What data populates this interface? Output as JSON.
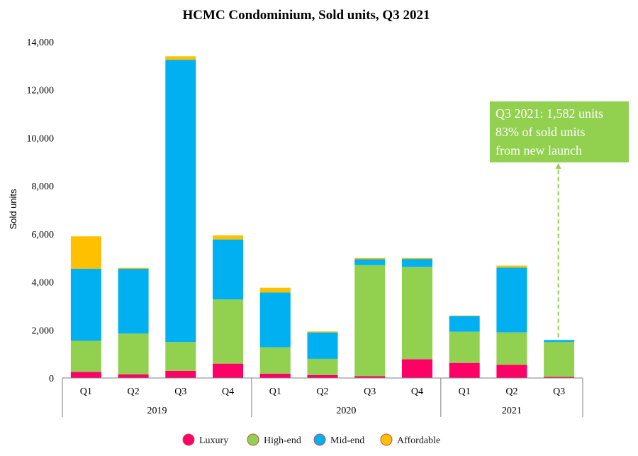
{
  "chart_data": {
    "type": "bar",
    "stacked": true,
    "title": "HCMC Condominium, Sold units, Q3 2021",
    "ylabel": "Sold units",
    "ylim": [
      0,
      14000
    ],
    "yticks": [
      0,
      2000,
      4000,
      6000,
      8000,
      10000,
      12000,
      14000
    ],
    "ytick_labels": [
      "0",
      "2,000",
      "4,000",
      "6,000",
      "8,000",
      "10,000",
      "12,000",
      "14,000"
    ],
    "categories": [
      "Q1",
      "Q2",
      "Q3",
      "Q4",
      "Q1",
      "Q2",
      "Q3",
      "Q4",
      "Q1",
      "Q2",
      "Q3"
    ],
    "groups": [
      {
        "label": "2019",
        "count": 4
      },
      {
        "label": "2020",
        "count": 4
      },
      {
        "label": "2021",
        "count": 3
      }
    ],
    "series": [
      {
        "name": "Luxury",
        "color": "#ff0066",
        "values": [
          250,
          150,
          300,
          600,
          180,
          120,
          80,
          780,
          630,
          550,
          50
        ]
      },
      {
        "name": "High-end",
        "color": "#92d050",
        "values": [
          1300,
          1700,
          1200,
          2670,
          1100,
          680,
          4620,
          3850,
          1300,
          1350,
          1450
        ]
      },
      {
        "name": "Mid-end",
        "color": "#00b0f0",
        "values": [
          3000,
          2700,
          11750,
          2500,
          2280,
          1100,
          250,
          330,
          650,
          2700,
          82
        ]
      },
      {
        "name": "Affordable",
        "color": "#ffc000",
        "values": [
          1350,
          40,
          150,
          170,
          200,
          40,
          50,
          40,
          20,
          80,
          0
        ]
      }
    ],
    "legend_position": "bottom",
    "grid": false,
    "annotation": {
      "lines": [
        "Q3 2021: 1,582 units",
        "83% of sold units",
        "from new launch"
      ],
      "color": "#92d050",
      "target_category_index": 10
    }
  }
}
